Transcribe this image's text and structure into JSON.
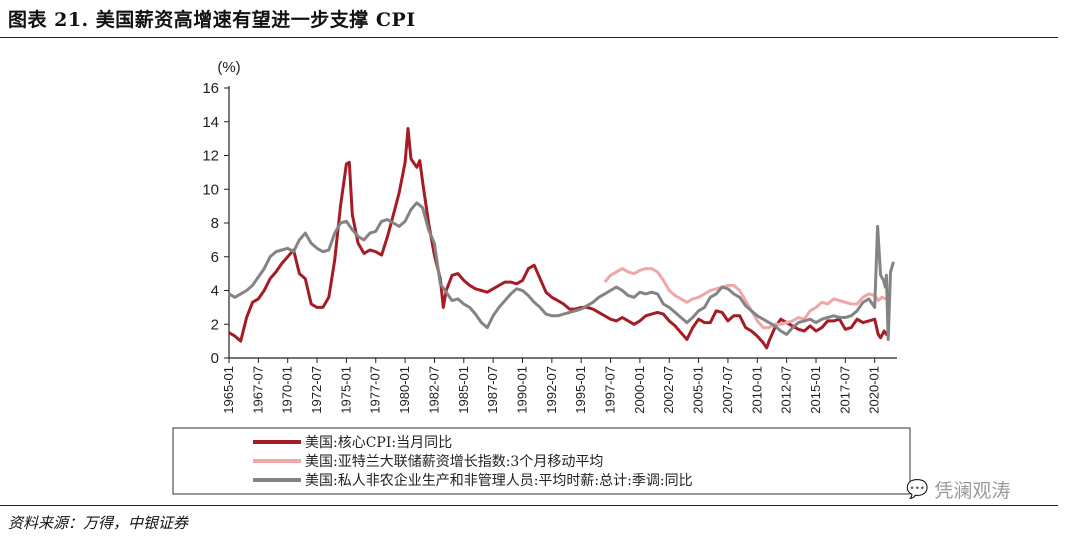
{
  "header": {
    "title": "图表 21. 美国薪资高增速有望进一步支撑 CPI"
  },
  "footer": {
    "source": "资料来源：万得，中银证券",
    "watermark": "凭澜观涛",
    "watermark_icon": "wechat-icon"
  },
  "chart_data": {
    "type": "line",
    "ylabel": "(%)",
    "ylim": [
      0,
      16
    ],
    "yticks": [
      0,
      2,
      4,
      6,
      8,
      10,
      12,
      14,
      16
    ],
    "xlim": [
      1965.0,
      2021.9
    ],
    "xticks": [
      "1965-01",
      "1967-07",
      "1970-01",
      "1972-07",
      "1975-01",
      "1977-07",
      "1980-01",
      "1982-07",
      "1985-01",
      "1987-07",
      "1990-01",
      "1992-07",
      "1995-01",
      "1997-07",
      "2000-01",
      "2002-07",
      "2005-01",
      "2007-07",
      "2010-01",
      "2012-07",
      "2015-01",
      "2017-07",
      "2020-01"
    ],
    "grid": false,
    "legend_position": "bottom",
    "series": [
      {
        "name": "美国:核心CPI:当月同比",
        "color": "#a51c24",
        "points": [
          [
            1965.0,
            1.5
          ],
          [
            1965.5,
            1.3
          ],
          [
            1966.0,
            1.0
          ],
          [
            1966.5,
            2.4
          ],
          [
            1967.0,
            3.3
          ],
          [
            1967.5,
            3.5
          ],
          [
            1968.0,
            4.0
          ],
          [
            1968.5,
            4.7
          ],
          [
            1969.0,
            5.1
          ],
          [
            1969.5,
            5.6
          ],
          [
            1970.0,
            6.0
          ],
          [
            1970.5,
            6.4
          ],
          [
            1971.0,
            5.0
          ],
          [
            1971.5,
            4.7
          ],
          [
            1972.0,
            3.2
          ],
          [
            1972.5,
            3.0
          ],
          [
            1973.0,
            3.0
          ],
          [
            1973.5,
            3.6
          ],
          [
            1974.0,
            5.8
          ],
          [
            1974.5,
            9.0
          ],
          [
            1975.0,
            11.5
          ],
          [
            1975.25,
            11.6
          ],
          [
            1975.5,
            8.5
          ],
          [
            1976.0,
            6.8
          ],
          [
            1976.5,
            6.2
          ],
          [
            1977.0,
            6.4
          ],
          [
            1977.5,
            6.3
          ],
          [
            1978.0,
            6.1
          ],
          [
            1978.5,
            7.2
          ],
          [
            1979.0,
            8.5
          ],
          [
            1979.5,
            9.8
          ],
          [
            1980.0,
            11.6
          ],
          [
            1980.25,
            13.6
          ],
          [
            1980.5,
            11.8
          ],
          [
            1981.0,
            11.3
          ],
          [
            1981.25,
            11.7
          ],
          [
            1981.5,
            10.4
          ],
          [
            1982.0,
            8.0
          ],
          [
            1982.5,
            6.1
          ],
          [
            1983.0,
            4.7
          ],
          [
            1983.25,
            3.0
          ],
          [
            1983.5,
            4.0
          ],
          [
            1984.0,
            4.9
          ],
          [
            1984.5,
            5.0
          ],
          [
            1985.0,
            4.6
          ],
          [
            1985.5,
            4.3
          ],
          [
            1986.0,
            4.1
          ],
          [
            1986.5,
            4.0
          ],
          [
            1987.0,
            3.9
          ],
          [
            1987.5,
            4.1
          ],
          [
            1988.0,
            4.3
          ],
          [
            1988.5,
            4.5
          ],
          [
            1989.0,
            4.5
          ],
          [
            1989.5,
            4.4
          ],
          [
            1990.0,
            4.6
          ],
          [
            1990.5,
            5.3
          ],
          [
            1991.0,
            5.5
          ],
          [
            1991.5,
            4.7
          ],
          [
            1992.0,
            3.9
          ],
          [
            1992.5,
            3.6
          ],
          [
            1993.0,
            3.4
          ],
          [
            1993.5,
            3.2
          ],
          [
            1994.0,
            2.9
          ],
          [
            1994.5,
            2.9
          ],
          [
            1995.0,
            3.0
          ],
          [
            1995.5,
            3.0
          ],
          [
            1996.0,
            2.9
          ],
          [
            1996.5,
            2.7
          ],
          [
            1997.0,
            2.5
          ],
          [
            1997.5,
            2.3
          ],
          [
            1998.0,
            2.2
          ],
          [
            1998.5,
            2.4
          ],
          [
            1999.0,
            2.2
          ],
          [
            1999.5,
            2.0
          ],
          [
            2000.0,
            2.2
          ],
          [
            2000.5,
            2.5
          ],
          [
            2001.0,
            2.6
          ],
          [
            2001.5,
            2.7
          ],
          [
            2002.0,
            2.6
          ],
          [
            2002.5,
            2.2
          ],
          [
            2003.0,
            1.9
          ],
          [
            2003.5,
            1.5
          ],
          [
            2004.0,
            1.1
          ],
          [
            2004.5,
            1.8
          ],
          [
            2005.0,
            2.3
          ],
          [
            2005.5,
            2.1
          ],
          [
            2006.0,
            2.1
          ],
          [
            2006.5,
            2.8
          ],
          [
            2007.0,
            2.7
          ],
          [
            2007.5,
            2.2
          ],
          [
            2008.0,
            2.5
          ],
          [
            2008.5,
            2.5
          ],
          [
            2009.0,
            1.8
          ],
          [
            2009.5,
            1.6
          ],
          [
            2010.0,
            1.3
          ],
          [
            2010.5,
            0.9
          ],
          [
            2010.8,
            0.6
          ],
          [
            2011.0,
            1.0
          ],
          [
            2011.5,
            1.8
          ],
          [
            2012.0,
            2.3
          ],
          [
            2012.5,
            2.1
          ],
          [
            2013.0,
            1.9
          ],
          [
            2013.5,
            1.7
          ],
          [
            2014.0,
            1.6
          ],
          [
            2014.5,
            1.9
          ],
          [
            2015.0,
            1.6
          ],
          [
            2015.5,
            1.8
          ],
          [
            2016.0,
            2.2
          ],
          [
            2016.5,
            2.2
          ],
          [
            2017.0,
            2.3
          ],
          [
            2017.5,
            1.7
          ],
          [
            2018.0,
            1.8
          ],
          [
            2018.5,
            2.3
          ],
          [
            2019.0,
            2.1
          ],
          [
            2019.5,
            2.2
          ],
          [
            2020.0,
            2.3
          ],
          [
            2020.3,
            1.4
          ],
          [
            2020.5,
            1.2
          ],
          [
            2020.8,
            1.6
          ],
          [
            2021.0,
            1.4
          ],
          [
            2021.2,
            1.6
          ]
        ]
      },
      {
        "name": "美国:亚特兰大联储薪资增长指数:3个月移动平均",
        "color": "#f0a7a7",
        "points": [
          [
            1997.0,
            4.5
          ],
          [
            1997.5,
            4.9
          ],
          [
            1998.0,
            5.1
          ],
          [
            1998.5,
            5.3
          ],
          [
            1999.0,
            5.1
          ],
          [
            1999.5,
            5.0
          ],
          [
            2000.0,
            5.2
          ],
          [
            2000.5,
            5.3
          ],
          [
            2001.0,
            5.3
          ],
          [
            2001.5,
            5.1
          ],
          [
            2002.0,
            4.6
          ],
          [
            2002.5,
            4.0
          ],
          [
            2003.0,
            3.7
          ],
          [
            2003.5,
            3.5
          ],
          [
            2004.0,
            3.3
          ],
          [
            2004.5,
            3.5
          ],
          [
            2005.0,
            3.6
          ],
          [
            2005.5,
            3.8
          ],
          [
            2006.0,
            4.0
          ],
          [
            2006.5,
            4.1
          ],
          [
            2007.0,
            4.2
          ],
          [
            2007.5,
            4.3
          ],
          [
            2008.0,
            4.3
          ],
          [
            2008.5,
            4.0
          ],
          [
            2009.0,
            3.4
          ],
          [
            2009.5,
            2.8
          ],
          [
            2010.0,
            2.2
          ],
          [
            2010.5,
            1.8
          ],
          [
            2011.0,
            1.8
          ],
          [
            2011.5,
            2.0
          ],
          [
            2012.0,
            2.0
          ],
          [
            2012.5,
            2.1
          ],
          [
            2013.0,
            2.2
          ],
          [
            2013.5,
            2.4
          ],
          [
            2014.0,
            2.3
          ],
          [
            2014.5,
            2.8
          ],
          [
            2015.0,
            3.0
          ],
          [
            2015.5,
            3.3
          ],
          [
            2016.0,
            3.2
          ],
          [
            2016.5,
            3.5
          ],
          [
            2017.0,
            3.4
          ],
          [
            2017.5,
            3.3
          ],
          [
            2018.0,
            3.2
          ],
          [
            2018.5,
            3.2
          ],
          [
            2019.0,
            3.6
          ],
          [
            2019.5,
            3.8
          ],
          [
            2020.0,
            3.7
          ],
          [
            2020.3,
            3.4
          ],
          [
            2020.6,
            3.6
          ],
          [
            2021.0,
            3.5
          ],
          [
            2021.3,
            3.9
          ]
        ]
      },
      {
        "name": "美国:私人非农企业生产和非管理人员:平均时薪:总计:季调:同比",
        "color": "#848484",
        "points": [
          [
            1965.0,
            3.8
          ],
          [
            1965.5,
            3.6
          ],
          [
            1966.0,
            3.8
          ],
          [
            1966.5,
            4.0
          ],
          [
            1967.0,
            4.3
          ],
          [
            1967.5,
            4.8
          ],
          [
            1968.0,
            5.3
          ],
          [
            1968.5,
            6.0
          ],
          [
            1969.0,
            6.3
          ],
          [
            1969.5,
            6.4
          ],
          [
            1970.0,
            6.5
          ],
          [
            1970.5,
            6.3
          ],
          [
            1971.0,
            7.0
          ],
          [
            1971.5,
            7.4
          ],
          [
            1972.0,
            6.8
          ],
          [
            1972.5,
            6.5
          ],
          [
            1973.0,
            6.3
          ],
          [
            1973.5,
            6.4
          ],
          [
            1974.0,
            7.4
          ],
          [
            1974.5,
            8.0
          ],
          [
            1975.0,
            8.1
          ],
          [
            1975.5,
            7.6
          ],
          [
            1976.0,
            7.2
          ],
          [
            1976.5,
            7.0
          ],
          [
            1977.0,
            7.4
          ],
          [
            1977.5,
            7.5
          ],
          [
            1978.0,
            8.1
          ],
          [
            1978.5,
            8.2
          ],
          [
            1979.0,
            8.0
          ],
          [
            1979.5,
            7.8
          ],
          [
            1980.0,
            8.1
          ],
          [
            1980.5,
            8.8
          ],
          [
            1981.0,
            9.2
          ],
          [
            1981.5,
            8.9
          ],
          [
            1982.0,
            7.6
          ],
          [
            1982.5,
            6.8
          ],
          [
            1983.0,
            4.4
          ],
          [
            1983.5,
            3.9
          ],
          [
            1984.0,
            3.4
          ],
          [
            1984.5,
            3.5
          ],
          [
            1985.0,
            3.2
          ],
          [
            1985.5,
            3.0
          ],
          [
            1986.0,
            2.6
          ],
          [
            1986.5,
            2.1
          ],
          [
            1987.0,
            1.8
          ],
          [
            1987.5,
            2.5
          ],
          [
            1988.0,
            3.0
          ],
          [
            1988.5,
            3.4
          ],
          [
            1989.0,
            3.8
          ],
          [
            1989.5,
            4.1
          ],
          [
            1990.0,
            4.0
          ],
          [
            1990.5,
            3.7
          ],
          [
            1991.0,
            3.3
          ],
          [
            1991.5,
            3.0
          ],
          [
            1992.0,
            2.6
          ],
          [
            1992.5,
            2.5
          ],
          [
            1993.0,
            2.5
          ],
          [
            1993.5,
            2.6
          ],
          [
            1994.0,
            2.7
          ],
          [
            1994.5,
            2.8
          ],
          [
            1995.0,
            2.9
          ],
          [
            1995.5,
            3.1
          ],
          [
            1996.0,
            3.3
          ],
          [
            1996.5,
            3.6
          ],
          [
            1997.0,
            3.8
          ],
          [
            1997.5,
            4.0
          ],
          [
            1998.0,
            4.2
          ],
          [
            1998.5,
            4.0
          ],
          [
            1999.0,
            3.7
          ],
          [
            1999.5,
            3.6
          ],
          [
            2000.0,
            3.9
          ],
          [
            2000.5,
            3.8
          ],
          [
            2001.0,
            3.9
          ],
          [
            2001.5,
            3.8
          ],
          [
            2002.0,
            3.2
          ],
          [
            2002.5,
            3.0
          ],
          [
            2003.0,
            2.7
          ],
          [
            2003.5,
            2.4
          ],
          [
            2004.0,
            2.1
          ],
          [
            2004.5,
            2.4
          ],
          [
            2005.0,
            2.8
          ],
          [
            2005.5,
            3.0
          ],
          [
            2006.0,
            3.6
          ],
          [
            2006.5,
            3.8
          ],
          [
            2007.0,
            4.2
          ],
          [
            2007.5,
            4.1
          ],
          [
            2008.0,
            3.8
          ],
          [
            2008.5,
            3.6
          ],
          [
            2009.0,
            3.1
          ],
          [
            2009.5,
            2.8
          ],
          [
            2010.0,
            2.5
          ],
          [
            2010.5,
            2.3
          ],
          [
            2011.0,
            2.1
          ],
          [
            2011.5,
            1.9
          ],
          [
            2012.0,
            1.6
          ],
          [
            2012.5,
            1.4
          ],
          [
            2013.0,
            1.8
          ],
          [
            2013.5,
            2.1
          ],
          [
            2014.0,
            2.2
          ],
          [
            2014.5,
            2.3
          ],
          [
            2015.0,
            2.1
          ],
          [
            2015.5,
            2.3
          ],
          [
            2016.0,
            2.4
          ],
          [
            2016.5,
            2.5
          ],
          [
            2017.0,
            2.4
          ],
          [
            2017.5,
            2.4
          ],
          [
            2018.0,
            2.5
          ],
          [
            2018.5,
            2.8
          ],
          [
            2019.0,
            3.3
          ],
          [
            2019.5,
            3.5
          ],
          [
            2020.0,
            3.0
          ],
          [
            2020.25,
            7.8
          ],
          [
            2020.5,
            4.9
          ],
          [
            2020.75,
            4.6
          ],
          [
            2020.9,
            4.2
          ],
          [
            2021.0,
            4.9
          ],
          [
            2021.15,
            1.1
          ],
          [
            2021.35,
            5.1
          ],
          [
            2021.6,
            5.7
          ]
        ]
      }
    ]
  }
}
